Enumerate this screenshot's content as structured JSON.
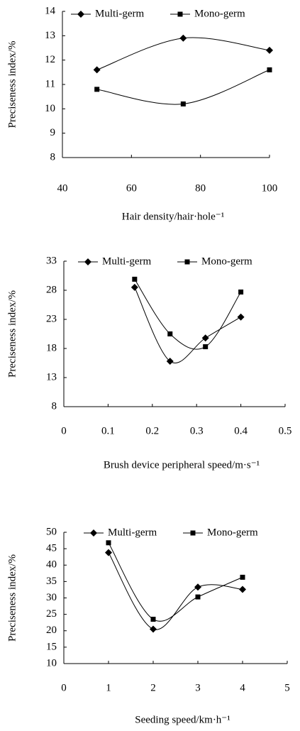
{
  "chart_data": [
    {
      "type": "line",
      "xlabel": "Hair density/hair·hole⁻¹",
      "ylabel": "Preciseness index/%",
      "xlim": [
        40,
        100
      ],
      "xticks": [
        40,
        60,
        80,
        100
      ],
      "ylim": [
        8,
        14
      ],
      "yticks": [
        8,
        9,
        10,
        11,
        12,
        13,
        14
      ],
      "smooth": true,
      "series": [
        {
          "name": "Multi-germ",
          "color": "#000000",
          "marker": "diamond",
          "x": [
            50,
            75,
            100
          ],
          "values": [
            11.6,
            12.9,
            12.4
          ]
        },
        {
          "name": "Mono-germ",
          "color": "#000000",
          "marker": "square",
          "x": [
            50,
            75,
            100
          ],
          "values": [
            10.8,
            10.2,
            11.6
          ]
        }
      ]
    },
    {
      "type": "line",
      "xlabel": "Brush device peripheral speed/m·s⁻¹",
      "ylabel": "Preciseness index/%",
      "xlim": [
        0,
        0.5
      ],
      "xticks": [
        0,
        0.1,
        0.2,
        0.3,
        0.4,
        0.5
      ],
      "ylim": [
        8,
        33
      ],
      "yticks": [
        8,
        13,
        18,
        23,
        28,
        33
      ],
      "smooth": true,
      "series": [
        {
          "name": "Multi-germ",
          "color": "#000000",
          "marker": "diamond",
          "x": [
            0.16,
            0.24,
            0.32,
            0.4
          ],
          "values": [
            28.5,
            15.8,
            19.8,
            23.4
          ]
        },
        {
          "name": "Mono-germ",
          "color": "#000000",
          "marker": "square",
          "x": [
            0.16,
            0.24,
            0.32,
            0.4
          ],
          "values": [
            29.9,
            20.5,
            18.3,
            27.7
          ]
        }
      ]
    },
    {
      "type": "line",
      "xlabel": "Seeding speed/km·h⁻¹",
      "ylabel": "Preciseness index/%",
      "xlim": [
        0,
        5
      ],
      "xticks": [
        0,
        1,
        2,
        3,
        4,
        5
      ],
      "ylim": [
        10,
        50
      ],
      "yticks": [
        10,
        15,
        20,
        25,
        30,
        35,
        40,
        45,
        50
      ],
      "smooth": true,
      "series": [
        {
          "name": "Multi-germ",
          "color": "#000000",
          "marker": "diamond",
          "x": [
            1,
            2,
            3,
            4
          ],
          "values": [
            43.8,
            20.5,
            33.3,
            32.6
          ]
        },
        {
          "name": "Mono-germ",
          "color": "#000000",
          "marker": "square",
          "x": [
            1,
            2,
            3,
            4
          ],
          "values": [
            46.8,
            23.5,
            30.3,
            36.3
          ]
        }
      ]
    }
  ]
}
